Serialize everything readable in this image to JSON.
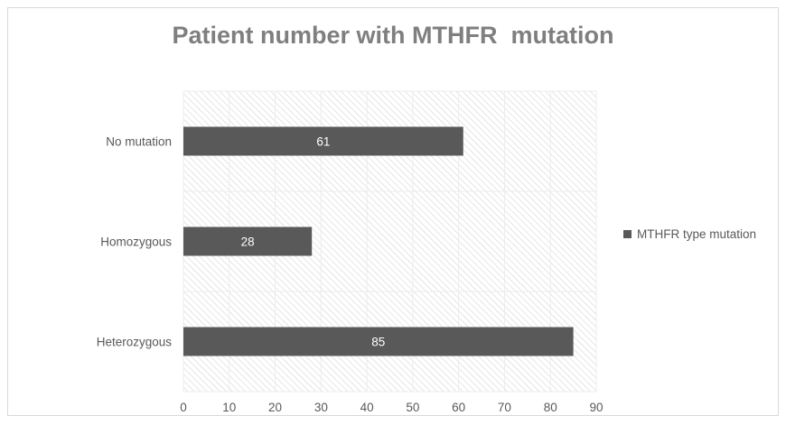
{
  "chart_data": {
    "type": "bar",
    "orientation": "horizontal",
    "title": "Patient number with MTHFR  mutation",
    "categories": [
      "No mutation",
      "Homozygous",
      "Heterozygous"
    ],
    "series": [
      {
        "name": "MTHFR type mutation",
        "values": [
          61,
          28,
          85
        ],
        "color": "#595959"
      }
    ],
    "xlim": [
      0,
      90
    ],
    "xticks": [
      0,
      10,
      20,
      30,
      40,
      50,
      60,
      70,
      80,
      90
    ],
    "data_labels": true,
    "grid": true,
    "legend_position": "right"
  }
}
